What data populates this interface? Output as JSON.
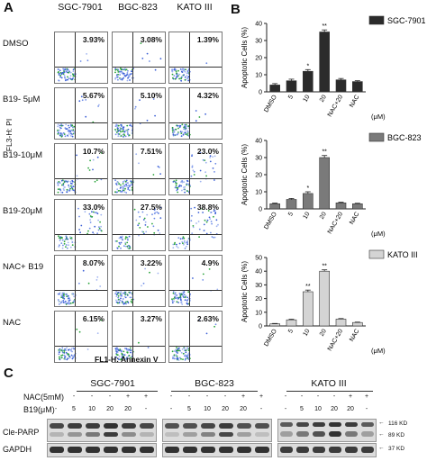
{
  "panel_a": {
    "letter": "A",
    "columns": [
      "SGC-7901",
      "BGC-823",
      "KATO III"
    ],
    "rows": [
      {
        "label": "DMSO",
        "values": [
          "3.93%",
          "3.08%",
          "1.39%"
        ]
      },
      {
        "label": "B19- 5μM",
        "values": [
          "5.67%",
          "5.10%",
          "4.32%"
        ]
      },
      {
        "label": "B19-10μM",
        "values": [
          "10.7%",
          "7.51%",
          "23.0%"
        ]
      },
      {
        "label": "B19-20μM",
        "values": [
          "33.0%",
          "27.5%",
          "38.8%"
        ]
      },
      {
        "label": "NAC+ B19",
        "values": [
          "8.07%",
          "3.22%",
          "4.9%"
        ]
      },
      {
        "label": "NAC",
        "values": [
          "6.15%",
          "3.27%",
          "2.63%"
        ]
      }
    ],
    "ylabel": "FL3-H: PI",
    "xlabel": "FL1-H: Annexin V"
  },
  "panel_b": {
    "letter": "B"
  },
  "panel_c": {
    "letter": "C",
    "groups": [
      "SGC-7901",
      "BGC-823",
      "KATO III"
    ],
    "nac_label": "NAC(5mM)",
    "b19_label": "B19(μM)",
    "nac_marks": [
      "-",
      "-",
      "-",
      "-",
      "+",
      "+"
    ],
    "b19_values": [
      "-",
      "5",
      "10",
      "20",
      "20",
      "-"
    ],
    "rows": [
      "Cle-PARP",
      "GAPDH"
    ],
    "mw_markers": [
      "116 KD",
      "89 KD",
      "37 KD"
    ]
  },
  "chart_data": [
    {
      "type": "bar",
      "legend": "SGC-7901",
      "categories": [
        "DMSO",
        "5",
        "10",
        "20",
        "NAC+20",
        "NAC"
      ],
      "values": [
        4,
        6.5,
        12,
        35,
        7,
        6
      ],
      "errors": [
        0.8,
        0.9,
        1.0,
        1.2,
        0.8,
        0.5
      ],
      "significance": [
        "",
        "",
        "*",
        "**",
        "",
        ""
      ],
      "ylabel": "Apoptotic Cells (%)",
      "unit": "(μM)",
      "yticks": [
        0,
        10,
        20,
        30,
        40
      ],
      "ylim": [
        0,
        40
      ],
      "color": "#2b2b2b"
    },
    {
      "type": "bar",
      "legend": "BGC-823",
      "categories": [
        "DMSO",
        "5",
        "10",
        "20",
        "NAC+20",
        "NAC"
      ],
      "values": [
        3,
        5.5,
        9,
        30,
        3.5,
        3
      ],
      "errors": [
        0.4,
        0.6,
        1.0,
        1.2,
        0.4,
        0.3
      ],
      "significance": [
        "",
        "",
        "*",
        "**",
        "",
        ""
      ],
      "ylabel": "Apoptotic Cells (%)",
      "unit": "(μM)",
      "yticks": [
        0,
        10,
        20,
        30,
        40
      ],
      "ylim": [
        0,
        40
      ],
      "color": "#7a7a7a"
    },
    {
      "type": "bar",
      "legend": "KATO III",
      "categories": [
        "DMSO",
        "5",
        "10",
        "20",
        "NAC+20",
        "NAC"
      ],
      "values": [
        1.5,
        4.5,
        25,
        40,
        5,
        2.5
      ],
      "errors": [
        0.3,
        0.4,
        1.2,
        1.0,
        0.4,
        0.3
      ],
      "significance": [
        "",
        "",
        "**",
        "**",
        "",
        ""
      ],
      "ylabel": "Apoptotic Cells (%)",
      "unit": "(μM)",
      "yticks": [
        0,
        10,
        20,
        30,
        40,
        50
      ],
      "ylim": [
        0,
        50
      ],
      "color": "#d4d4d4"
    }
  ]
}
